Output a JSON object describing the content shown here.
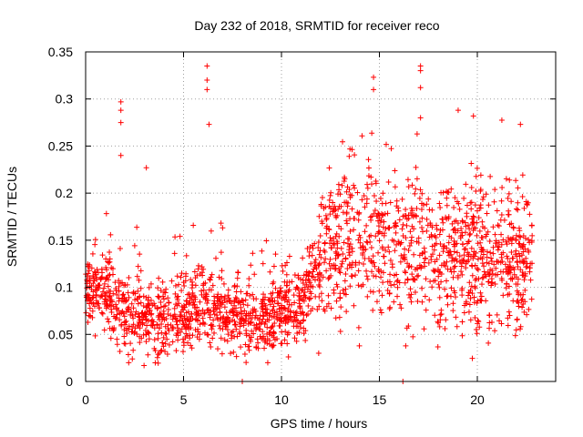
{
  "chart_data": {
    "type": "scatter",
    "title": "Day 232 of 2018, SRMTID for receiver reco",
    "xlabel": "GPS time / hours",
    "ylabel": "SRMTID / TECUs",
    "xlim": [
      0,
      24
    ],
    "ylim": [
      0,
      0.35
    ],
    "xticks": [
      0,
      5,
      10,
      15,
      20
    ],
    "xtick_labels": [
      "0",
      "5",
      "10",
      "15",
      "20"
    ],
    "yticks": [
      0,
      0.05,
      0.1,
      0.15,
      0.2,
      0.25,
      0.3,
      0.35
    ],
    "ytick_labels": [
      "0",
      "0.05",
      "0.1",
      "0.15",
      "0.2",
      "0.25",
      "0.3",
      "0.35"
    ],
    "grid": true,
    "marker": "+",
    "color": "#ff0000",
    "data_range_x": [
      0,
      22.8
    ],
    "approx_trend": [
      {
        "x": 0,
        "y": 0.095
      },
      {
        "x": 1,
        "y": 0.1
      },
      {
        "x": 2,
        "y": 0.07
      },
      {
        "x": 3,
        "y": 0.065
      },
      {
        "x": 4,
        "y": 0.065
      },
      {
        "x": 5,
        "y": 0.07
      },
      {
        "x": 6,
        "y": 0.085
      },
      {
        "x": 7,
        "y": 0.07
      },
      {
        "x": 8,
        "y": 0.065
      },
      {
        "x": 9,
        "y": 0.065
      },
      {
        "x": 10,
        "y": 0.075
      },
      {
        "x": 11,
        "y": 0.08
      },
      {
        "x": 12,
        "y": 0.13
      },
      {
        "x": 13,
        "y": 0.15
      },
      {
        "x": 14,
        "y": 0.16
      },
      {
        "x": 15,
        "y": 0.15
      },
      {
        "x": 16,
        "y": 0.145
      },
      {
        "x": 17,
        "y": 0.14
      },
      {
        "x": 18,
        "y": 0.14
      },
      {
        "x": 19,
        "y": 0.13
      },
      {
        "x": 20,
        "y": 0.13
      },
      {
        "x": 21,
        "y": 0.135
      },
      {
        "x": 22,
        "y": 0.125
      },
      {
        "x": 22.8,
        "y": 0.13
      }
    ],
    "notable_points": [
      {
        "x": 6.2,
        "y": 0.335
      },
      {
        "x": 6.2,
        "y": 0.32
      },
      {
        "x": 6.2,
        "y": 0.31
      },
      {
        "x": 17.1,
        "y": 0.335
      },
      {
        "x": 17.1,
        "y": 0.33
      },
      {
        "x": 17.1,
        "y": 0.312
      },
      {
        "x": 14.7,
        "y": 0.323
      },
      {
        "x": 14.7,
        "y": 0.31
      },
      {
        "x": 1.8,
        "y": 0.297
      },
      {
        "x": 1.8,
        "y": 0.288
      },
      {
        "x": 1.8,
        "y": 0.275
      },
      {
        "x": 6.3,
        "y": 0.273
      },
      {
        "x": 19.8,
        "y": 0.282
      },
      {
        "x": 17.1,
        "y": 0.28
      },
      {
        "x": 22.2,
        "y": 0.273
      },
      {
        "x": 1.8,
        "y": 0.24
      },
      {
        "x": 3.1,
        "y": 0.227
      },
      {
        "x": 8.0,
        "y": 0.0
      },
      {
        "x": 16.2,
        "y": 0.0
      },
      {
        "x": 9.3,
        "y": 0.02
      },
      {
        "x": 2.2,
        "y": 0.02
      },
      {
        "x": 11.9,
        "y": 0.03
      }
    ],
    "scatter_density_note": "dense cloud of ~2000 points following approx_trend with spread"
  }
}
